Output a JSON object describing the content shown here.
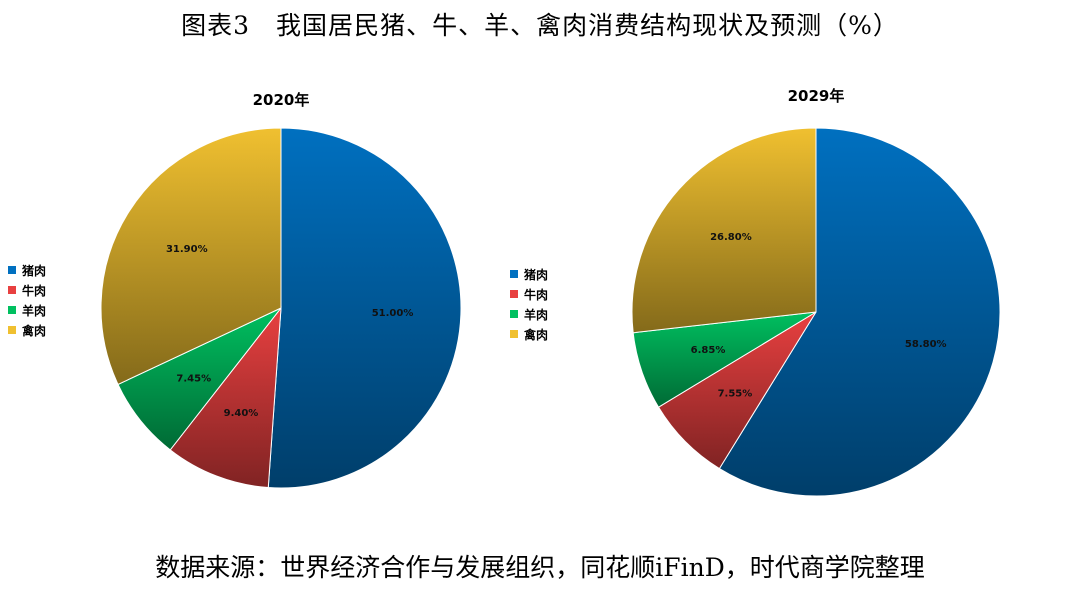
{
  "figure": {
    "title": "图表3　我国居民猪、牛、羊、禽肉消费结构现状及预测（%）",
    "source": "数据来源：世界经济合作与发展组织，同花顺iFinD，时代商学院整理"
  },
  "colors": {
    "pork": "#0070C0",
    "beef": "#E84040",
    "mutton": "#00C060",
    "poultry": "#F0C030"
  },
  "chart_data": [
    {
      "type": "pie",
      "title": "2020年",
      "categories": [
        "猪肉",
        "牛肉",
        "羊肉",
        "禽肉"
      ],
      "values": [
        51.0,
        9.4,
        7.45,
        31.9
      ],
      "labels": [
        "51.00%",
        "9.40%",
        "7.45%",
        "31.90%"
      ],
      "legend": "left"
    },
    {
      "type": "pie",
      "title": "2029年",
      "categories": [
        "猪肉",
        "牛肉",
        "羊肉",
        "禽肉"
      ],
      "values": [
        58.8,
        7.55,
        6.85,
        26.8
      ],
      "labels": [
        "58.80%",
        "7.55%",
        "6.85%",
        "26.80%"
      ],
      "legend": "left"
    }
  ]
}
